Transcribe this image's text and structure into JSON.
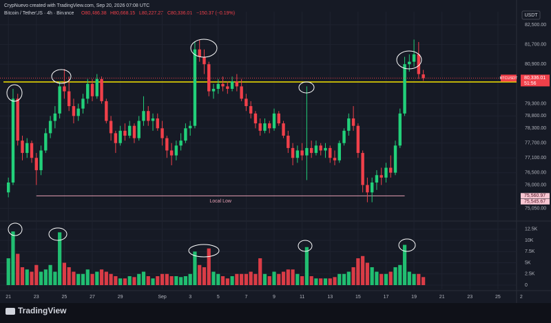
{
  "chart_data": {
    "type": "candlestick",
    "attribution": "CrypNuevo created with TradingView.com, Sep 20, 2026 07:08 UTC",
    "legend": {
      "symbol": "Bitcoin / TetherUS · 4h · Binance",
      "open": "O80,486.38",
      "high": "H80,668.15",
      "low": "L80,227.27",
      "close": "C80,336.01",
      "change": "−150.37 (−0.19%)"
    },
    "currency": "USDT",
    "brand": "TradingView",
    "up_color": "#22d07a",
    "down_color": "#f0404a",
    "x": [
      0,
      1,
      2,
      3,
      4,
      5,
      6,
      7,
      8,
      9,
      10,
      11,
      12,
      13,
      14,
      15,
      16,
      17,
      18,
      19,
      20,
      21,
      22,
      23,
      24,
      25,
      26,
      27,
      28,
      29,
      30,
      31,
      32,
      33,
      34,
      35,
      36,
      37,
      38,
      39,
      40,
      41,
      42,
      43,
      44,
      45,
      46,
      47,
      48,
      49,
      50,
      51,
      52,
      53,
      54,
      55,
      56,
      57,
      58,
      59,
      60,
      61,
      62,
      63,
      64,
      65,
      66,
      67,
      68,
      69,
      70,
      71,
      72,
      73,
      74,
      75,
      76,
      77,
      78,
      79,
      80,
      81,
      82,
      83,
      84,
      85,
      86,
      87,
      88,
      89
    ],
    "open": [
      75700,
      76100,
      79500,
      77800,
      77300,
      77700,
      77100,
      76600,
      77400,
      78100,
      78600,
      78900,
      80000,
      79800,
      79200,
      78800,
      79100,
      79500,
      80100,
      79600,
      80300,
      79400,
      78600,
      78100,
      77700,
      78200,
      78000,
      78400,
      77900,
      78600,
      79000,
      78600,
      78700,
      78300,
      77900,
      77400,
      77200,
      77600,
      77800,
      78300,
      78400,
      81500,
      81200,
      80900,
      79800,
      79900,
      80100,
      80000,
      79900,
      80200,
      80000,
      79500,
      79200,
      78900,
      78500,
      78200,
      78500,
      78300,
      78900,
      78500,
      78000,
      77500,
      77100,
      77400,
      77200,
      77500,
      77300,
      77600,
      77400,
      77500,
      77100,
      77000,
      77700,
      78200,
      78700,
      78400,
      77300,
      76000,
      75700,
      76100,
      76400,
      76300,
      76700,
      76500,
      77600,
      78900,
      80900,
      81000,
      81300,
      80486.38
    ],
    "high": [
      76300,
      79900,
      79700,
      78000,
      77900,
      77800,
      77300,
      77600,
      78300,
      78800,
      79200,
      80200,
      80700,
      80400,
      79500,
      79300,
      79700,
      80300,
      80300,
      80500,
      80400,
      79500,
      78800,
      78200,
      78400,
      78500,
      78600,
      78500,
      78800,
      79600,
      79200,
      78900,
      78900,
      78600,
      78000,
      77700,
      77800,
      78100,
      78500,
      78600,
      81800,
      81900,
      81500,
      81000,
      80100,
      80300,
      80400,
      80200,
      80400,
      80500,
      80300,
      79700,
      79400,
      79000,
      78700,
      78700,
      78600,
      79100,
      79000,
      78600,
      78200,
      77700,
      77600,
      77700,
      80000,
      77800,
      77800,
      77700,
      77700,
      77600,
      77400,
      77800,
      78300,
      78900,
      79200,
      78500,
      77400,
      76300,
      76300,
      76600,
      76700,
      76900,
      77200,
      77800,
      79100,
      81200,
      81300,
      81900,
      81800,
      80668.15
    ],
    "low": [
      75500,
      76000,
      77600,
      77000,
      77100,
      76900,
      76000,
      76400,
      77300,
      77900,
      78300,
      78700,
      79500,
      79000,
      78500,
      78600,
      78900,
      79300,
      79400,
      79500,
      79300,
      78500,
      77800,
      77300,
      77600,
      77800,
      77900,
      77700,
      77800,
      78400,
      78400,
      78200,
      78200,
      77600,
      77100,
      76800,
      77000,
      77400,
      77700,
      78000,
      78300,
      81000,
      80500,
      79600,
      79500,
      79700,
      79800,
      79700,
      79800,
      79800,
      79400,
      79000,
      78700,
      78300,
      78000,
      78100,
      78100,
      78200,
      78400,
      77900,
      77300,
      76800,
      76900,
      77000,
      76200,
      77100,
      77200,
      77200,
      77100,
      76900,
      76800,
      76900,
      77600,
      78000,
      78200,
      77100,
      75700,
      75300,
      75300,
      75800,
      76000,
      76100,
      76300,
      76400,
      77500,
      78800,
      80600,
      80800,
      80300,
      80227.27
    ],
    "close": [
      76100,
      79500,
      77800,
      77300,
      77700,
      77100,
      76600,
      77400,
      78100,
      78600,
      78900,
      80000,
      79800,
      79200,
      78800,
      79100,
      79500,
      80100,
      79600,
      80300,
      79400,
      78600,
      78100,
      77700,
      78200,
      78000,
      78400,
      77900,
      78600,
      79000,
      78600,
      78700,
      78300,
      77900,
      77400,
      77200,
      77600,
      77800,
      78300,
      78400,
      81500,
      81200,
      80900,
      79800,
      79900,
      80100,
      80000,
      79900,
      80200,
      80000,
      79500,
      79200,
      78900,
      78500,
      78200,
      78500,
      78300,
      78900,
      78500,
      78000,
      77500,
      77100,
      77400,
      77200,
      77500,
      77300,
      77600,
      77400,
      77500,
      77100,
      77000,
      77700,
      78200,
      78700,
      78400,
      77300,
      76000,
      75700,
      76100,
      76400,
      76300,
      76700,
      76500,
      77600,
      78900,
      80900,
      81000,
      81300,
      80500,
      80336.01
    ],
    "volume": [
      6000,
      12000,
      7000,
      4000,
      3500,
      3000,
      4500,
      3000,
      3500,
      4500,
      3000,
      11800,
      5000,
      4000,
      3000,
      2500,
      2500,
      3500,
      2500,
      3000,
      3500,
      3000,
      2500,
      2000,
      1500,
      1500,
      2000,
      1800,
      2500,
      3000,
      2000,
      1500,
      2000,
      2500,
      2500,
      2000,
      2000,
      1800,
      2000,
      2500,
      7500,
      4500,
      4000,
      8200,
      3000,
      2500,
      2000,
      1500,
      2000,
      2500,
      2500,
      2500,
      3000,
      2500,
      6000,
      2500,
      2000,
      3000,
      2500,
      3000,
      3500,
      3500,
      2500,
      2000,
      8500,
      2000,
      1500,
      1500,
      1500,
      1500,
      1800,
      2500,
      2500,
      3000,
      4000,
      6000,
      6500,
      5000,
      4000,
      3000,
      2500,
      2500,
      3000,
      4000,
      4500,
      9000,
      3000,
      2500,
      2500,
      1800
    ],
    "xlim": [
      -1.8,
      109
    ],
    "xticks": [
      {
        "value": 0,
        "label": "21"
      },
      {
        "value": 6,
        "label": "23"
      },
      {
        "value": 12,
        "label": "25"
      },
      {
        "value": 18,
        "label": "27"
      },
      {
        "value": 24,
        "label": "29"
      },
      {
        "value": 33,
        "label": "Sep"
      },
      {
        "value": 39,
        "label": "3"
      },
      {
        "value": 45,
        "label": "5"
      },
      {
        "value": 51,
        "label": "7"
      },
      {
        "value": 57,
        "label": "9"
      },
      {
        "value": 63,
        "label": "11"
      },
      {
        "value": 69,
        "label": "13"
      },
      {
        "value": 75,
        "label": "15"
      },
      {
        "value": 81,
        "label": "17"
      },
      {
        "value": 87,
        "label": "19"
      },
      {
        "value": 93,
        "label": "21"
      },
      {
        "value": 99,
        "label": "23"
      },
      {
        "value": 105,
        "label": "25"
      },
      {
        "value": 110,
        "label": "2"
      }
    ],
    "ylim": [
      74620,
      82750
    ],
    "yticks": [
      {
        "value": 82500,
        "label": "82,500.00"
      },
      {
        "value": 81700,
        "label": "81,700.00"
      },
      {
        "value": 80900,
        "label": "80,900.00"
      },
      {
        "value": 79300,
        "label": "79,300.00"
      },
      {
        "value": 78800,
        "label": "78,800.00"
      },
      {
        "value": 78300,
        "label": "78,300.00"
      },
      {
        "value": 77700,
        "label": "77,700.00"
      },
      {
        "value": 77100,
        "label": "77,100.00"
      },
      {
        "value": 76500,
        "label": "76,500.00"
      },
      {
        "value": 76000,
        "label": "76,000.00"
      },
      {
        "value": 75050,
        "label": "75,050.00"
      }
    ],
    "volume_ylim": [
      0,
      13700
    ],
    "volume_yticks": [
      {
        "value": 12500,
        "label": "12.5K"
      },
      {
        "value": 10000,
        "label": "10K"
      },
      {
        "value": 7500,
        "label": "7.5K"
      },
      {
        "value": 5000,
        "label": "5K"
      },
      {
        "value": 2500,
        "label": "2.5K"
      },
      0
    ],
    "grid": true,
    "hlines": [
      {
        "value": 80180,
        "color": "#f5e400"
      },
      {
        "value": 75560.97,
        "color": "#e8a0b4",
        "x_range": [
          6,
          85
        ],
        "annotation": "Local Low"
      }
    ],
    "last_price": {
      "name": "BTCUSDT",
      "value": 80336.01,
      "label": "80,336.01",
      "timer": "51:56"
    },
    "price_tags": [
      {
        "value": 75560.97,
        "label": "75,560.97"
      },
      {
        "value": 75545.67,
        "label": "75,545.67"
      }
    ]
  }
}
